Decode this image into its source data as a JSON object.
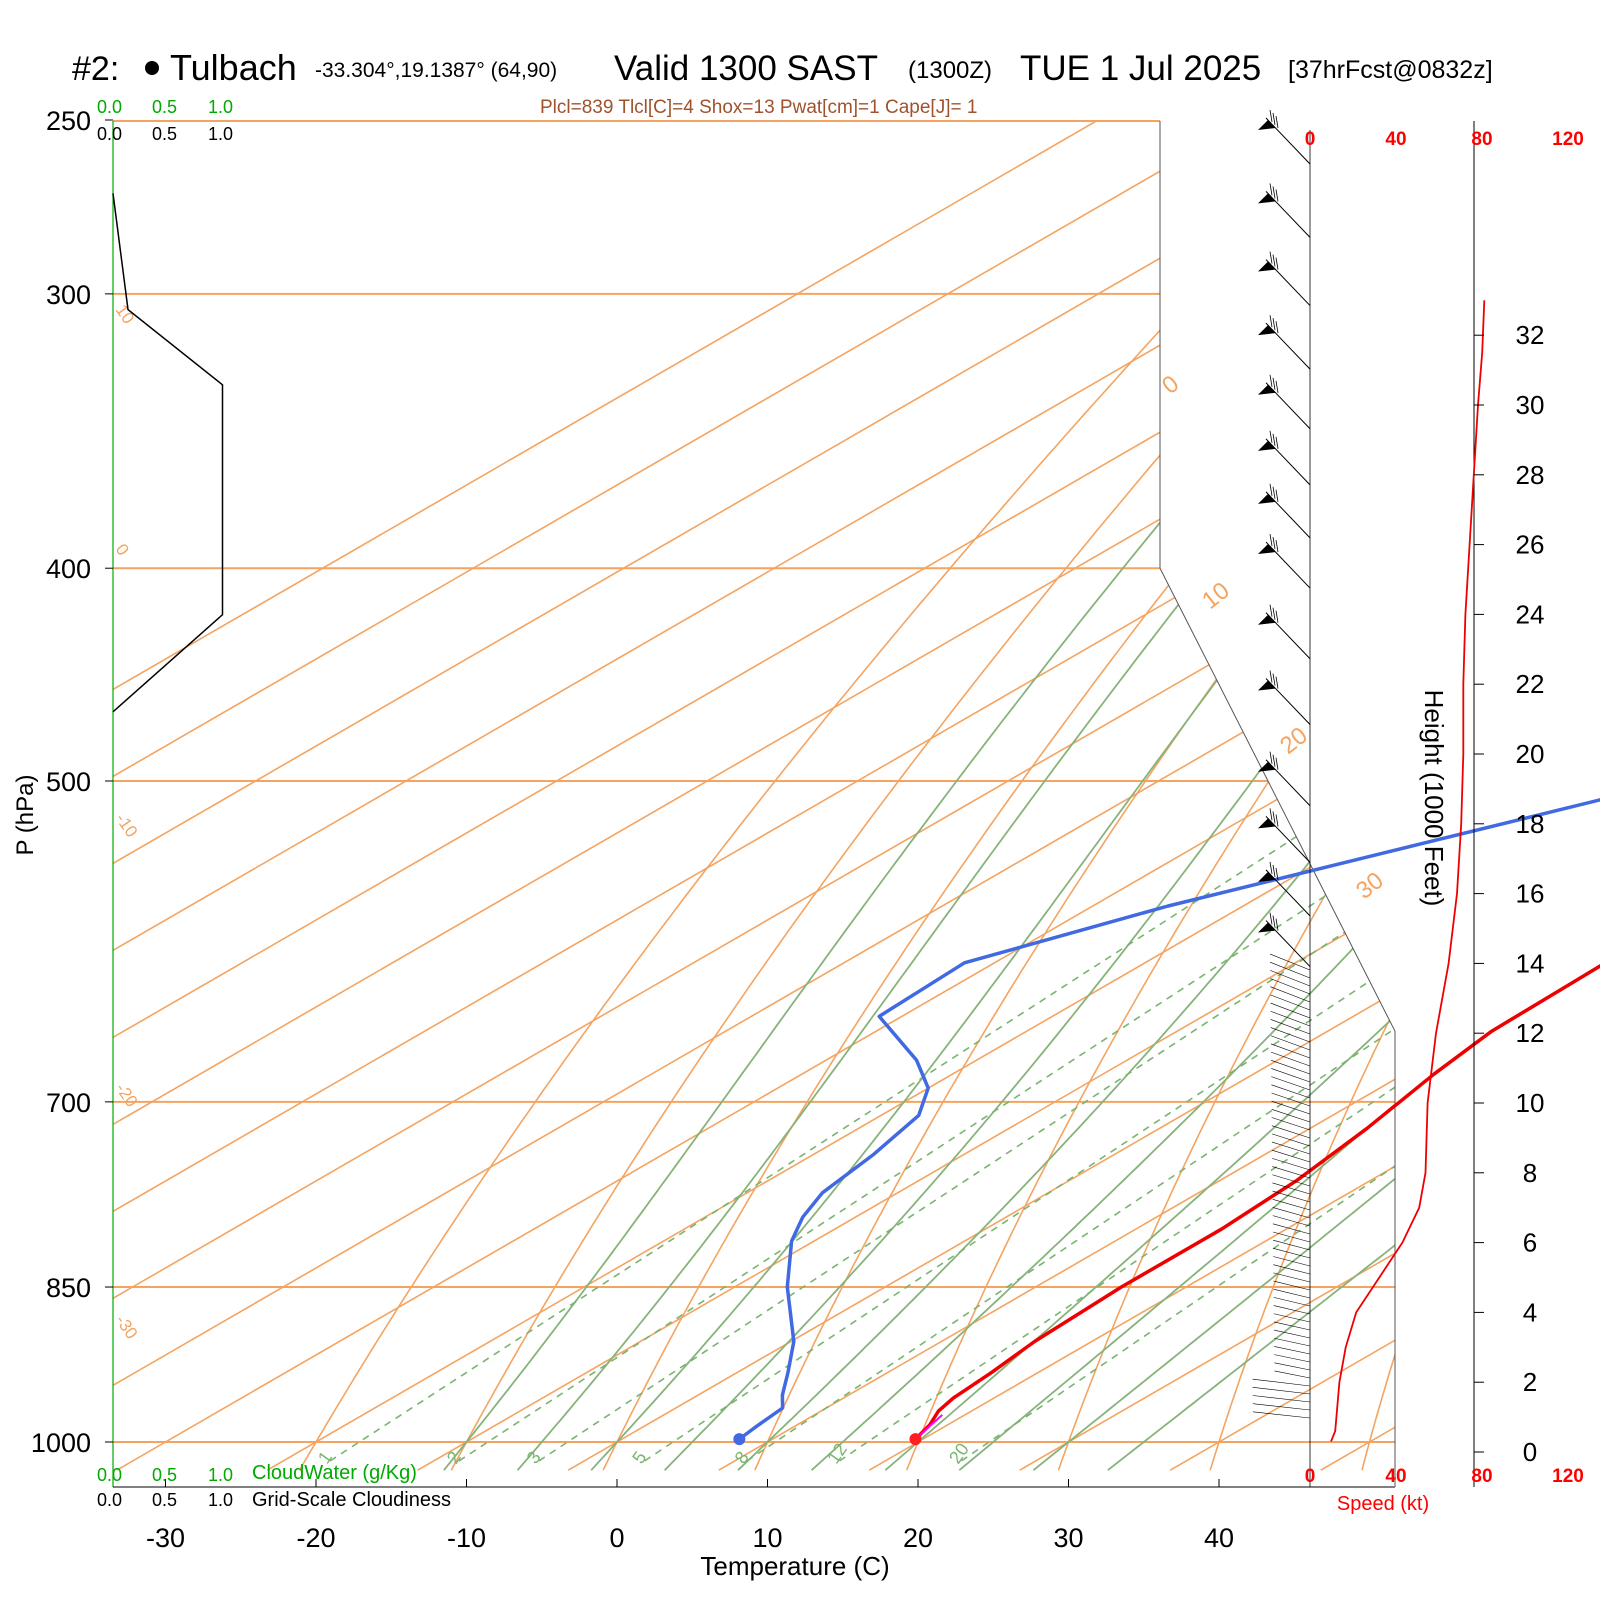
{
  "header": {
    "station_id": "#2:",
    "station_name": "Tulbach",
    "coords": "-33.304°,19.1387° (64,90)",
    "valid_label": "Valid 1300 SAST",
    "valid_z": "(1300Z)",
    "date_label": "TUE 1 Jul 2025",
    "forecast_label": "[37hrFcst@0832z]",
    "indices": "Plcl=839 Tlcl[C]=4 Shox=13 Pwat[cm]=1 Cape[J]= 1"
  },
  "axes": {
    "xlabel": "Temperature (C)",
    "ylabel": "P (hPa)",
    "height_label": "Height (1000 Feet)",
    "speed_label": "Speed (kt)",
    "cloudwater_label": "CloudWater (g/Kg)",
    "cloudiness_label": "Grid-Scale Cloudiness",
    "cloud_scale_green": [
      "0.0",
      "0.5",
      "1.0"
    ],
    "cloud_scale_black": [
      "0.0",
      "0.5",
      "1.0"
    ]
  },
  "chart_data": {
    "type": "skew-t",
    "temperature_ticks": [
      -30,
      -20,
      -10,
      0,
      10,
      20,
      30,
      40
    ],
    "pressure_ticks": [
      250,
      300,
      400,
      500,
      700,
      850,
      1000
    ],
    "pressure_range": [
      1030,
      250
    ],
    "temperature_range_at_1000": [
      -33.5,
      46
    ],
    "height_ticks_kft": [
      0,
      2,
      4,
      6,
      8,
      10,
      12,
      14,
      16,
      18,
      20,
      22,
      24,
      26,
      28,
      30,
      32
    ],
    "speed_ticks_kt": [
      "0",
      "40",
      "80",
      "120"
    ],
    "isotherm_labels": [
      "-30",
      "-20",
      "-10",
      "0",
      "10",
      "20",
      "30"
    ],
    "mixing_ratio_labels": [
      "1",
      "2",
      "3",
      "5",
      "8",
      "12",
      "20"
    ],
    "mixing_ratios": [
      1,
      2,
      3,
      5,
      8,
      12,
      20
    ],
    "dry_adiabat_thetas": [
      -20,
      -10,
      0,
      10,
      20,
      30,
      40,
      50,
      60,
      70,
      80,
      90,
      100
    ],
    "moist_adiabat_temps_at_1000": [
      -10,
      -5,
      0,
      5,
      10,
      15,
      20,
      25,
      30,
      35
    ],
    "temperature_profile": [
      {
        "p": 997,
        "t": 19.5
      },
      {
        "p": 982,
        "t": 18.8
      },
      {
        "p": 968,
        "t": 17.8
      },
      {
        "p": 955,
        "t": 17.3
      },
      {
        "p": 930,
        "t": 16.9
      },
      {
        "p": 900,
        "t": 16.2
      },
      {
        "p": 850,
        "t": 15.7
      },
      {
        "p": 800,
        "t": 15.7
      },
      {
        "p": 760,
        "t": 15.1
      },
      {
        "p": 720,
        "t": 13.8
      },
      {
        "p": 680,
        "t": 12.0
      },
      {
        "p": 650,
        "t": 10.9
      },
      {
        "p": 620,
        "t": 10.7
      },
      {
        "p": 580,
        "t": 10.4
      },
      {
        "p": 540,
        "t": 8.4
      },
      {
        "p": 510,
        "t": 5.5
      },
      {
        "p": 470,
        "t": 2.5
      },
      {
        "p": 440,
        "t": 0.5
      },
      {
        "p": 400,
        "t": -3.5
      },
      {
        "p": 370,
        "t": -7.0
      },
      {
        "p": 340,
        "t": -11.5
      },
      {
        "p": 300,
        "t": -18.0
      },
      {
        "p": 275,
        "t": -23.0
      },
      {
        "p": 262,
        "t": -26.5
      }
    ],
    "dewpoint_profile": [
      {
        "p": 997,
        "t": 7.8
      },
      {
        "p": 985,
        "t": 7.5
      },
      {
        "p": 965,
        "t": 7.1
      },
      {
        "p": 952,
        "t": 5.6
      },
      {
        "p": 930,
        "t": 3.4
      },
      {
        "p": 900,
        "t": 0.2
      },
      {
        "p": 850,
        "t": -6.5
      },
      {
        "p": 810,
        "t": -11.5
      },
      {
        "p": 790,
        "t": -13.5
      },
      {
        "p": 770,
        "t": -15.0
      },
      {
        "p": 740,
        "t": -16.0
      },
      {
        "p": 710,
        "t": -17.5
      },
      {
        "p": 690,
        "t": -20.0
      },
      {
        "p": 670,
        "t": -24.0
      },
      {
        "p": 640,
        "t": -31.5
      },
      {
        "p": 605,
        "t": -32.0
      },
      {
        "p": 570,
        "t": -25.0
      },
      {
        "p": 540,
        "t": -17.0
      },
      {
        "p": 510,
        "t": -8.5
      },
      {
        "p": 470,
        "t": -7.0
      },
      {
        "p": 430,
        "t": -9.5
      },
      {
        "p": 400,
        "t": -13.0
      },
      {
        "p": 360,
        "t": -20.0
      },
      {
        "p": 320,
        "t": -28.0
      },
      {
        "p": 290,
        "t": -36.0
      },
      {
        "p": 262,
        "t": -43.0
      }
    ],
    "parcel_segment": [
      {
        "p": 997,
        "t": 19.5
      },
      {
        "p": 972,
        "t": 18.5
      }
    ],
    "surface_temperature_c": 19.5,
    "surface_dewpoint_c": 7.8,
    "wind_speed_profile": [
      {
        "h": 0.3,
        "s": 10
      },
      {
        "h": 0.6,
        "s": 12
      },
      {
        "h": 2.0,
        "s": 14
      },
      {
        "h": 3.0,
        "s": 17
      },
      {
        "h": 4.0,
        "s": 22
      },
      {
        "h": 5.0,
        "s": 33
      },
      {
        "h": 6.0,
        "s": 44
      },
      {
        "h": 7.0,
        "s": 52
      },
      {
        "h": 8.0,
        "s": 55
      },
      {
        "h": 10.0,
        "s": 56
      },
      {
        "h": 12.0,
        "s": 60
      },
      {
        "h": 14.0,
        "s": 66
      },
      {
        "h": 16.0,
        "s": 70
      },
      {
        "h": 18.0,
        "s": 72
      },
      {
        "h": 20.0,
        "s": 73
      },
      {
        "h": 22.0,
        "s": 73
      },
      {
        "h": 24.0,
        "s": 74
      },
      {
        "h": 26.0,
        "s": 76
      },
      {
        "h": 28.0,
        "s": 78
      },
      {
        "h": 30.0,
        "s": 80
      },
      {
        "h": 31.5,
        "s": 82
      },
      {
        "h": 33.0,
        "s": 83
      }
    ],
    "cloudiness_profile": [
      {
        "p": 270,
        "v": 0.0
      },
      {
        "p": 305,
        "v": 0.1
      },
      {
        "p": 330,
        "v": 0.73
      },
      {
        "p": 420,
        "v": 0.73
      },
      {
        "p": 465,
        "v": 0.0
      }
    ],
    "wind_barbs_upper_pressure": [
      250,
      270,
      290,
      310,
      330,
      350,
      370,
      390,
      420,
      450,
      490,
      520,
      550,
      580
    ],
    "colors": {
      "temperature": "#ee0000",
      "dewpoint": "#4169e1",
      "parcel": "#ff00ff",
      "isotherm": "#f4a460",
      "dry_adiabat": "#f4a460",
      "moist_adiabat": "#86b37a",
      "mixing_ratio": "#79b56f",
      "cloudwater_text": "#00aa00",
      "speed_axis": "#ff0000",
      "indices_text": "#a0522d"
    }
  }
}
